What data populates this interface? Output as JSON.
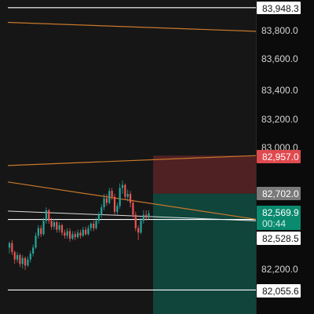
{
  "colors": {
    "background": "#161616",
    "axis_background": "#0b0b0b",
    "up_candle": "#26a69a",
    "down_candle": "#ef5350",
    "orange_line": "#c9782b",
    "white_line": "#ffffff",
    "stop_zone": "#5a2326",
    "target_zone": "#0f4a3f",
    "current_price_badge": "#0a8a6e",
    "stop_badge": "#e04a4f",
    "entry_badge": "#7a7a7a"
  },
  "price_axis": {
    "ticks": [
      "83,800.0",
      "83,600.0",
      "83,400.0",
      "83,200.0",
      "83,000.0",
      "82,200.0"
    ]
  },
  "badges": {
    "top_level": "83,948.3",
    "stop_loss": "82,957.0",
    "entry": "82,702.0",
    "current_price": "82,569.9",
    "countdown": "00:44",
    "level_mid": "82,528.5",
    "bottom_level": "82,055.6"
  },
  "chart_data": {
    "type": "candlestick",
    "ylim": [
      81990,
      84000
    ],
    "horizontal_lines": [
      83948.3,
      82528.5,
      82055.6
    ],
    "trend_lines": [
      {
        "from": [
          0,
          83850
        ],
        "to": [
          1,
          83790
        ]
      },
      {
        "from": [
          0,
          82890
        ],
        "to": [
          1,
          82957
        ]
      },
      {
        "from": [
          0,
          82780
        ],
        "to": [
          1,
          82530
        ]
      }
    ],
    "position": {
      "entry": 82702.0,
      "stop": 82957.0,
      "target": 81990
    },
    "candles": [
      [
        82340,
        82370,
        82300,
        82380
      ],
      [
        82370,
        82310,
        82290,
        82390
      ],
      [
        82310,
        82260,
        82230,
        82320
      ],
      [
        82260,
        82290,
        82240,
        82310
      ],
      [
        82290,
        82230,
        82210,
        82300
      ],
      [
        82230,
        82270,
        82200,
        82290
      ],
      [
        82270,
        82220,
        82190,
        82280
      ],
      [
        82220,
        82260,
        82210,
        82280
      ],
      [
        82260,
        82300,
        82240,
        82320
      ],
      [
        82300,
        82340,
        82280,
        82360
      ],
      [
        82340,
        82420,
        82330,
        82440
      ],
      [
        82420,
        82470,
        82400,
        82490
      ],
      [
        82470,
        82430,
        82410,
        82490
      ],
      [
        82430,
        82520,
        82420,
        82540
      ],
      [
        82520,
        82590,
        82500,
        82610
      ],
      [
        82590,
        82520,
        82500,
        82600
      ],
      [
        82520,
        82480,
        82460,
        82540
      ],
      [
        82480,
        82510,
        82460,
        82530
      ],
      [
        82510,
        82460,
        82440,
        82520
      ],
      [
        82460,
        82490,
        82440,
        82510
      ],
      [
        82490,
        82440,
        82420,
        82500
      ],
      [
        82440,
        82420,
        82400,
        82460
      ],
      [
        82420,
        82450,
        82400,
        82470
      ],
      [
        82450,
        82400,
        82380,
        82470
      ],
      [
        82400,
        82430,
        82390,
        82450
      ],
      [
        82430,
        82410,
        82390,
        82450
      ],
      [
        82410,
        82440,
        82400,
        82460
      ],
      [
        82440,
        82420,
        82400,
        82460
      ],
      [
        82420,
        82460,
        82410,
        82480
      ],
      [
        82460,
        82430,
        82420,
        82480
      ],
      [
        82430,
        82470,
        82420,
        82490
      ],
      [
        82470,
        82500,
        82450,
        82510
      ],
      [
        82500,
        82470,
        82450,
        82520
      ],
      [
        82470,
        82520,
        82460,
        82540
      ],
      [
        82520,
        82560,
        82500,
        82580
      ],
      [
        82560,
        82610,
        82540,
        82630
      ],
      [
        82610,
        82670,
        82590,
        82700
      ],
      [
        82670,
        82640,
        82620,
        82700
      ],
      [
        82640,
        82720,
        82630,
        82740
      ],
      [
        82720,
        82680,
        82660,
        82740
      ],
      [
        82680,
        82580,
        82560,
        82700
      ],
      [
        82580,
        82620,
        82560,
        82640
      ],
      [
        82620,
        82740,
        82600,
        82770
      ],
      [
        82740,
        82760,
        82700,
        82790
      ],
      [
        82760,
        82680,
        82660,
        82770
      ],
      [
        82680,
        82700,
        82650,
        82730
      ],
      [
        82700,
        82640,
        82610,
        82720
      ],
      [
        82640,
        82560,
        82540,
        82660
      ],
      [
        82560,
        82470,
        82450,
        82580
      ],
      [
        82470,
        82440,
        82390,
        82490
      ],
      [
        82440,
        82520,
        82430,
        82540
      ],
      [
        82520,
        82560,
        82500,
        82590
      ],
      [
        82560,
        82540,
        82520,
        82590
      ],
      [
        82540,
        82570,
        82530,
        82590
      ]
    ]
  }
}
